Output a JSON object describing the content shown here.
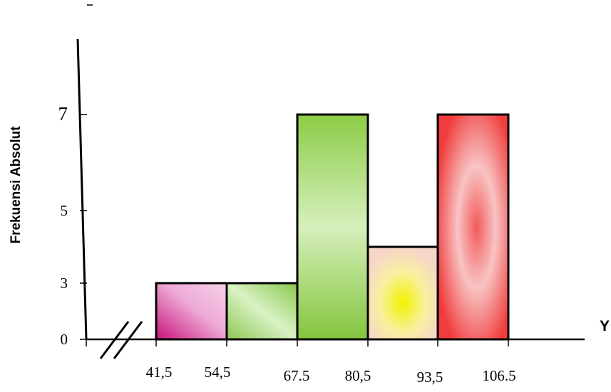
{
  "chart_data": {
    "type": "bar",
    "title": "",
    "ylabel": "Frekuensi Absolut",
    "xlabel": "Y",
    "ylim": [
      0,
      10
    ],
    "y_ticks": [
      "0",
      "3",
      "5",
      "7"
    ],
    "y_tick_values": [
      0,
      3,
      5,
      7
    ],
    "x_edges": [
      "41,5",
      "54,5",
      "67.5",
      "80,5",
      "93,5",
      "106.5"
    ],
    "edge_values": [
      41.5,
      54.5,
      67.5,
      80.5,
      93.5,
      106.5
    ],
    "categories": [
      "41,5 - 54,5",
      "54,5 - 67.5",
      "67.5 - 80,5",
      "80,5 - 93,5",
      "93,5 - 106.5"
    ],
    "values": [
      3,
      3,
      7,
      4,
      7
    ],
    "grid": false,
    "axis_break": true
  }
}
